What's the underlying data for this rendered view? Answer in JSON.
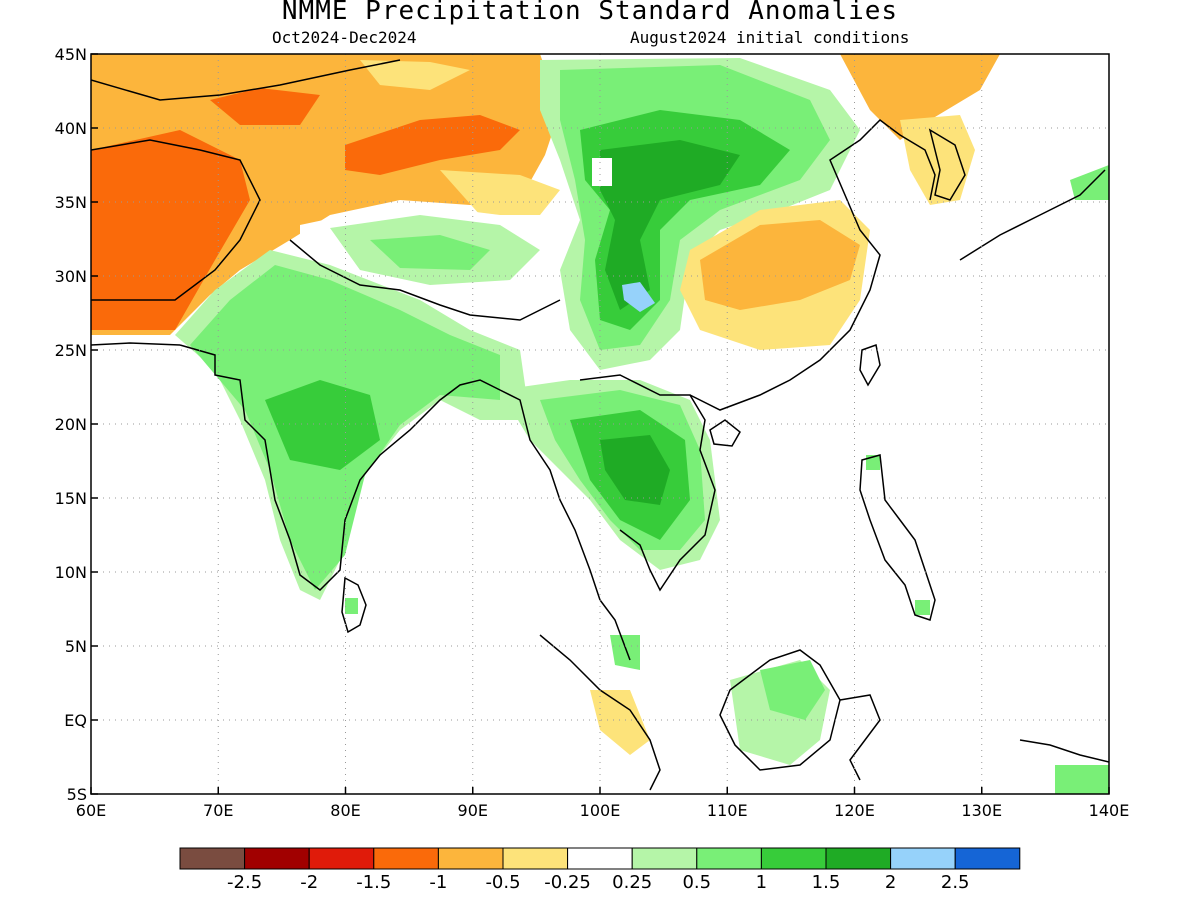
{
  "title": "NMME Precipitation Standard Anomalies",
  "period": "Oct2024-Dec2024",
  "initial_conditions": "August2024 initial conditions",
  "colors": {
    "c_m3": "#7a4c40",
    "c_m25": "#a10000",
    "c_m2": "#e01b0a",
    "c_m15": "#fa6a0a",
    "c_m1": "#fcb53c",
    "c_m05": "#fde37a",
    "c_0": "#ffffff",
    "c_p05": "#b5f5a8",
    "c_p1": "#79ef77",
    "c_p15": "#37cc3a",
    "c_p2": "#1fab25",
    "c_p25": "#96d2fa",
    "c_p3": "#1565d6"
  },
  "chart_data": {
    "type": "heatmap",
    "map_region": "Asia",
    "lon_range": [
      60,
      140
    ],
    "lat_range": [
      -5,
      45
    ],
    "x_ticks": [
      "60E",
      "70E",
      "80E",
      "90E",
      "100E",
      "110E",
      "120E",
      "130E",
      "140E"
    ],
    "y_ticks": [
      "45N",
      "40N",
      "35N",
      "30N",
      "25N",
      "20N",
      "15N",
      "10N",
      "5N",
      "EQ",
      "5S"
    ],
    "grid": "dotted",
    "colorbar": {
      "position": "bottom",
      "labels": [
        "-2.5",
        "-2",
        "-1.5",
        "-1",
        "-0.5",
        "-0.25",
        "0.25",
        "0.5",
        "1",
        "1.5",
        "2",
        "2.5"
      ],
      "bins": 13
    }
  }
}
